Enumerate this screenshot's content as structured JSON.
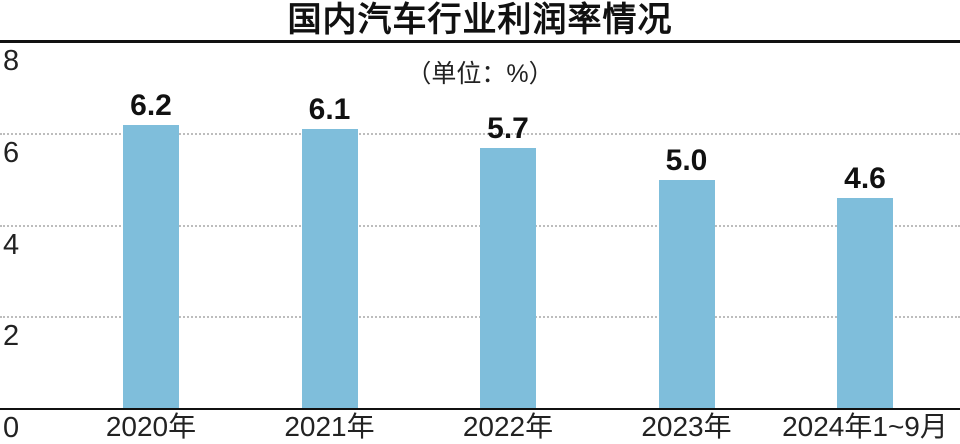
{
  "title": "国内汽车行业利润率情况",
  "subtitle": "（单位：%）",
  "chart_data": {
    "type": "bar",
    "title": "国内汽车行业利润率情况",
    "subtitle": "（单位：%）",
    "categories": [
      "2020年",
      "2021年",
      "2022年",
      "2023年",
      "2024年1~9月"
    ],
    "values": [
      6.2,
      6.1,
      5.7,
      5.0,
      4.6
    ],
    "value_labels": [
      "6.2",
      "6.1",
      "5.7",
      "5.0",
      "4.6"
    ],
    "xlabel": "",
    "ylabel": "",
    "ylim": [
      0,
      8
    ],
    "yticks": [
      8,
      6,
      4,
      2,
      0
    ],
    "grid": "horizontal-dotted",
    "legend": "none",
    "bar_color": "#7fbedb",
    "axis_rule_color": "#111111",
    "gridline_color": "#bdbdbd",
    "text_color": "#1a1a1a"
  }
}
